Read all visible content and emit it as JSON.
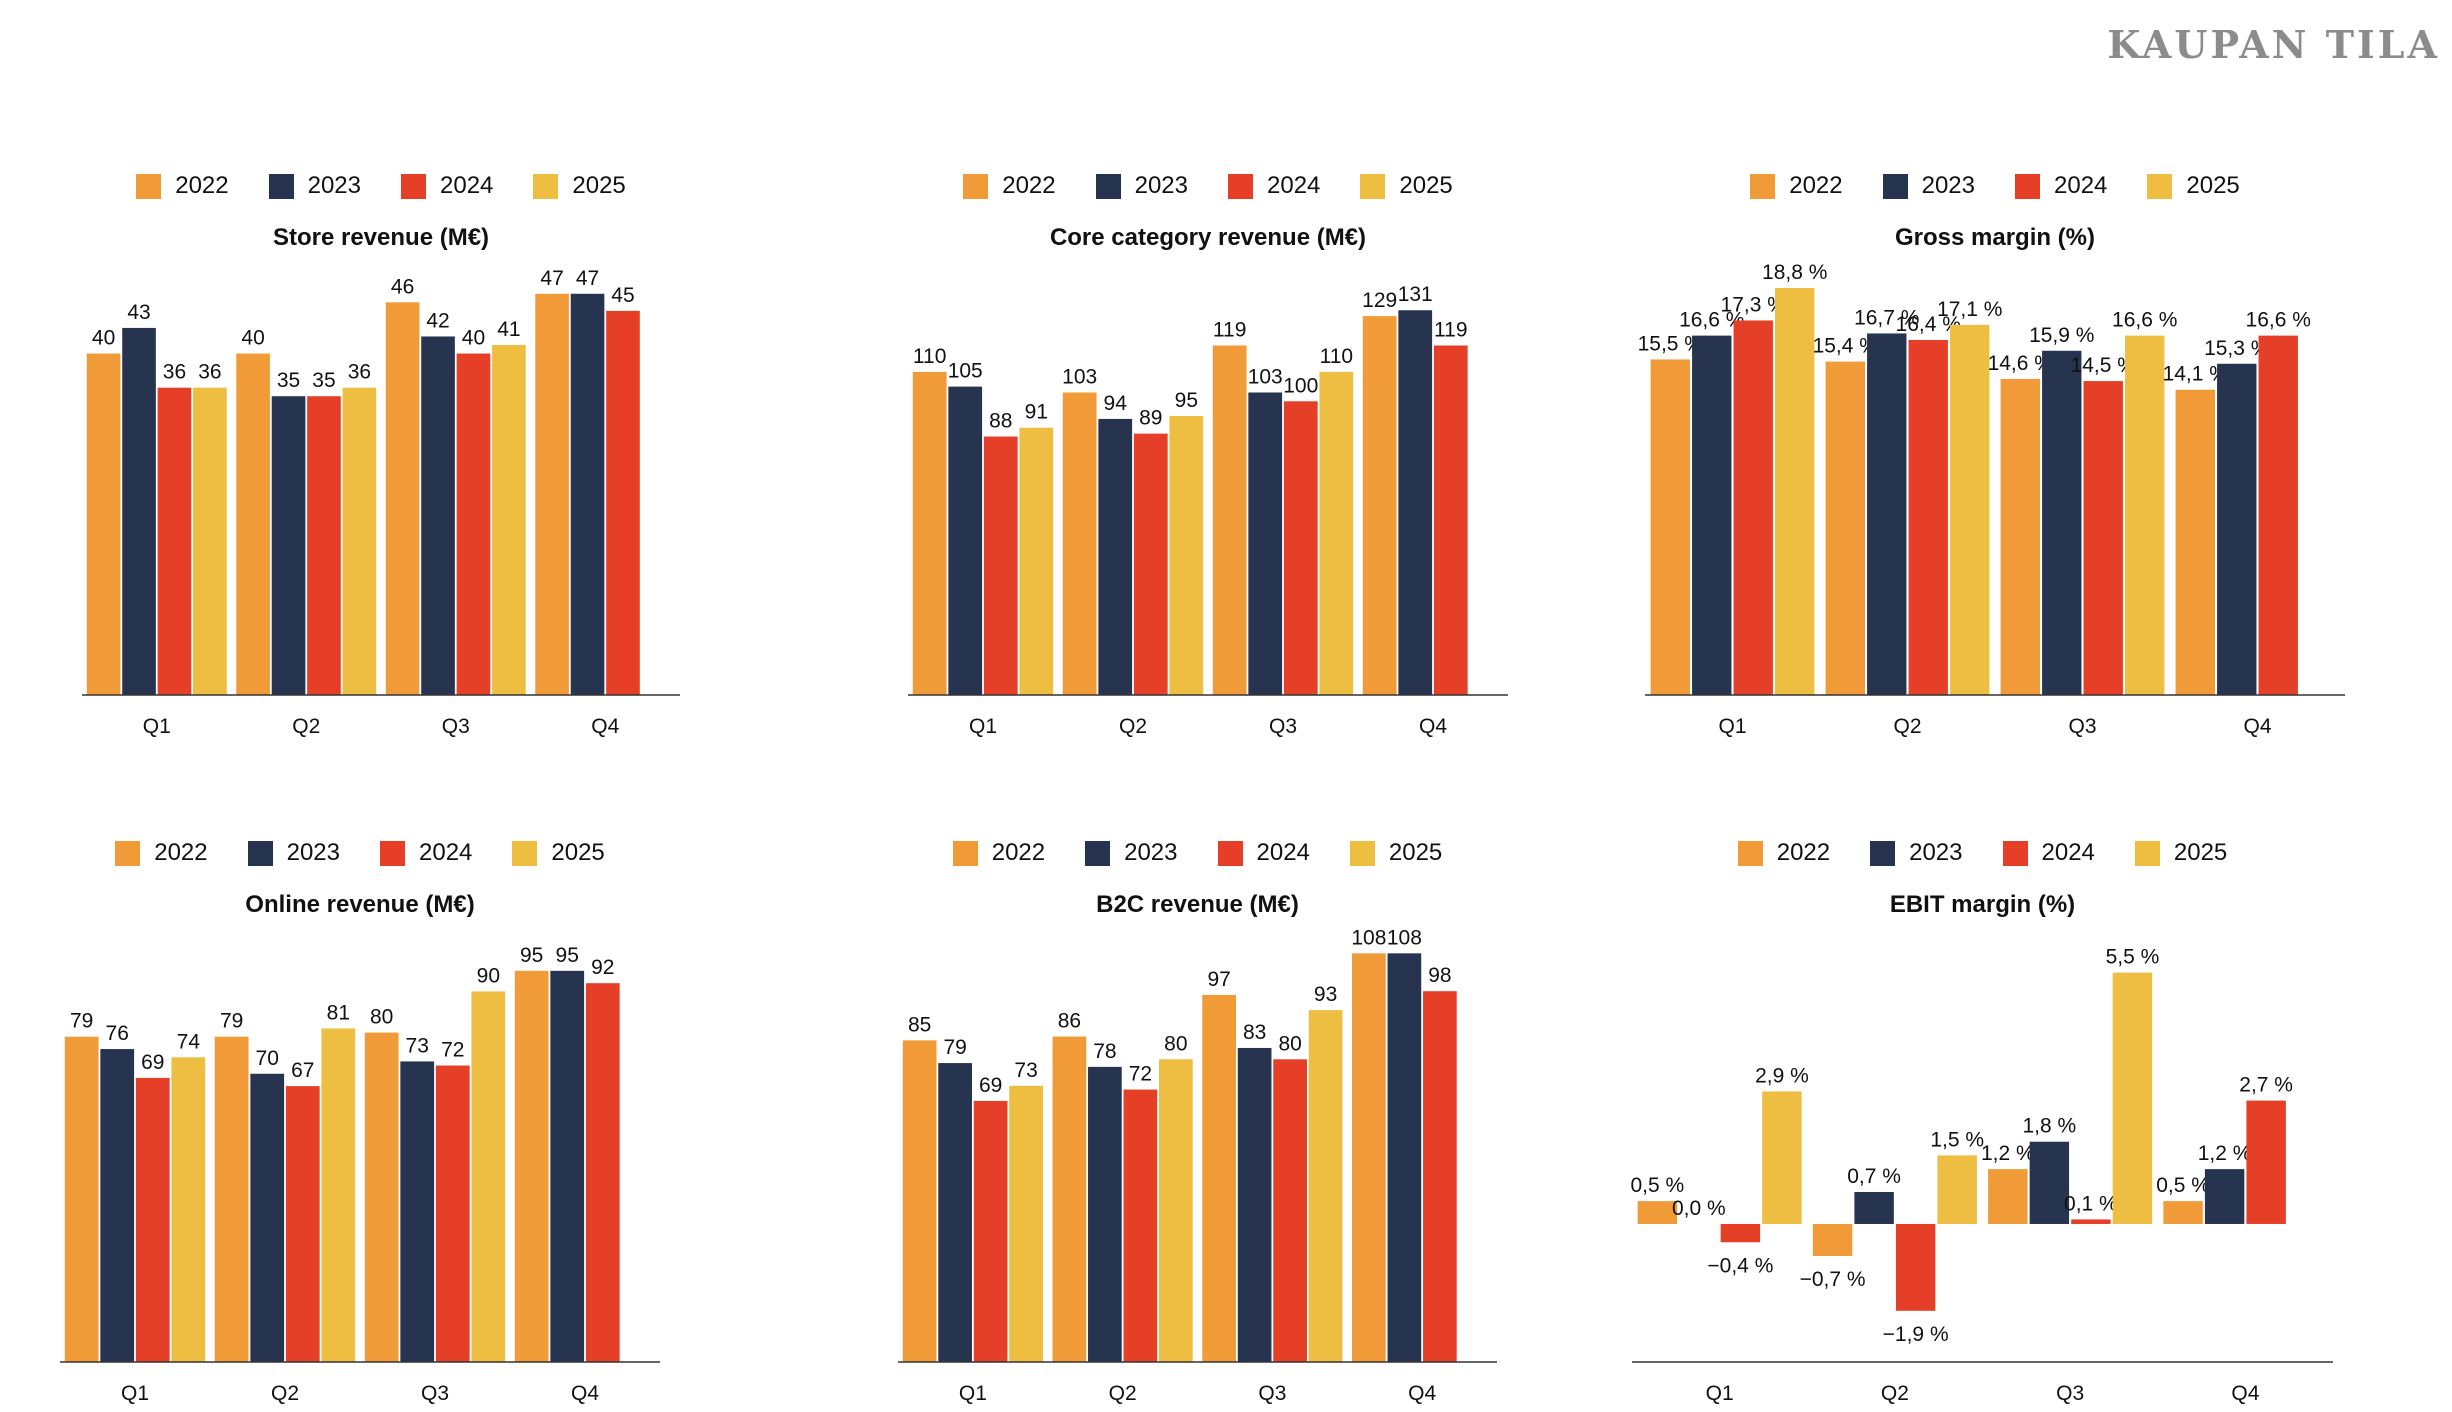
{
  "brand": "KAUPAN TILA",
  "colors": {
    "2022": "#F19A38",
    "2023": "#27344F",
    "2024": "#E54027",
    "2025": "#EDBE42"
  },
  "legend": [
    "2022",
    "2023",
    "2024",
    "2025"
  ],
  "chart_data": [
    {
      "type": "bar",
      "title": "Store revenue (M€)",
      "categories": [
        "Q1",
        "Q2",
        "Q3",
        "Q4"
      ],
      "ylim": [
        0,
        49.2
      ],
      "series": [
        {
          "name": "2022",
          "values": [
            40,
            40,
            46,
            47
          ],
          "labels": [
            "40",
            "40",
            "46",
            "47"
          ]
        },
        {
          "name": "2023",
          "values": [
            43,
            35,
            42,
            47
          ],
          "labels": [
            "43",
            "35",
            "42",
            "47"
          ]
        },
        {
          "name": "2024",
          "values": [
            36,
            35,
            40,
            45
          ],
          "labels": [
            "36",
            "35",
            "40",
            "45"
          ]
        },
        {
          "name": "2025",
          "values": [
            36,
            36,
            41,
            null
          ],
          "labels": [
            "36",
            "36",
            "41",
            null
          ]
        }
      ]
    },
    {
      "type": "bar",
      "title": "Core category revenue (M€)",
      "categories": [
        "Q1",
        "Q2",
        "Q3",
        "Q4"
      ],
      "ylim": [
        0,
        143
      ],
      "series": [
        {
          "name": "2022",
          "values": [
            110,
            103,
            119,
            129
          ],
          "labels": [
            "110",
            "103",
            "119",
            "129"
          ]
        },
        {
          "name": "2023",
          "values": [
            105,
            94,
            103,
            131
          ],
          "labels": [
            "105",
            "94",
            "103",
            "131"
          ]
        },
        {
          "name": "2024",
          "values": [
            88,
            89,
            100,
            119
          ],
          "labels": [
            "88",
            "89",
            "100",
            "119"
          ]
        },
        {
          "name": "2025",
          "values": [
            91,
            95,
            110,
            null
          ],
          "labels": [
            "91",
            "95",
            "110",
            null
          ]
        }
      ]
    },
    {
      "type": "bar",
      "title": "Gross margin (%)",
      "categories": [
        "Q1",
        "Q2",
        "Q3",
        "Q4"
      ],
      "ylim": [
        0,
        19.4
      ],
      "series": [
        {
          "name": "2022",
          "values": [
            15.5,
            15.4,
            14.6,
            14.1
          ],
          "labels": [
            "15,5 %",
            "15,4 %",
            "14,6 %",
            "14,1 %"
          ]
        },
        {
          "name": "2023",
          "values": [
            16.6,
            16.7,
            15.9,
            15.3
          ],
          "labels": [
            "16,6 %",
            "16,7 %",
            "15,9 %",
            "15,3 %"
          ]
        },
        {
          "name": "2024",
          "values": [
            17.3,
            16.4,
            14.5,
            16.6
          ],
          "labels": [
            "17,3 %",
            "16,4 %",
            "14,5 %",
            "16,6 %"
          ]
        },
        {
          "name": "2025",
          "values": [
            18.8,
            17.1,
            16.6,
            null
          ],
          "labels": [
            "18,8 %",
            "17,1 %",
            "16,6 %",
            null
          ]
        }
      ]
    },
    {
      "type": "bar",
      "title": "Online revenue (M€)",
      "categories": [
        "Q1",
        "Q2",
        "Q3",
        "Q4"
      ],
      "ylim": [
        0,
        102
      ],
      "series": [
        {
          "name": "2022",
          "values": [
            79,
            79,
            80,
            95
          ],
          "labels": [
            "79",
            "79",
            "80",
            "95"
          ]
        },
        {
          "name": "2023",
          "values": [
            76,
            70,
            73,
            95
          ],
          "labels": [
            "76",
            "70",
            "73",
            "95"
          ]
        },
        {
          "name": "2024",
          "values": [
            69,
            67,
            72,
            92
          ],
          "labels": [
            "69",
            "67",
            "72",
            "92"
          ]
        },
        {
          "name": "2025",
          "values": [
            74,
            81,
            90,
            null
          ],
          "labels": [
            "74",
            "81",
            "90",
            null
          ]
        }
      ]
    },
    {
      "type": "bar",
      "title": "B2C revenue (M€)",
      "categories": [
        "Q1",
        "Q2",
        "Q3",
        "Q4"
      ],
      "ylim": [
        0,
        111
      ],
      "series": [
        {
          "name": "2022",
          "values": [
            85,
            86,
            97,
            108
          ],
          "labels": [
            "85",
            "86",
            "97",
            "108"
          ]
        },
        {
          "name": "2023",
          "values": [
            79,
            78,
            83,
            108
          ],
          "labels": [
            "79",
            "78",
            "83",
            "108"
          ]
        },
        {
          "name": "2024",
          "values": [
            69,
            72,
            80,
            98
          ],
          "labels": [
            "69",
            "72",
            "80",
            "98"
          ]
        },
        {
          "name": "2025",
          "values": [
            73,
            80,
            93,
            null
          ],
          "labels": [
            "73",
            "80",
            "93",
            null
          ]
        }
      ]
    },
    {
      "type": "bar",
      "title": "EBIT margin (%)",
      "categories": [
        "Q1",
        "Q2",
        "Q3",
        "Q4"
      ],
      "ylim": [
        -3.02,
        6.17
      ],
      "series": [
        {
          "name": "2022",
          "values": [
            0.5,
            -0.7,
            1.2,
            0.5
          ],
          "labels": [
            "0,5 %",
            "−0,7 %",
            "1,2 %",
            "0,5 %"
          ]
        },
        {
          "name": "2023",
          "values": [
            0.0,
            0.7,
            1.8,
            1.2
          ],
          "labels": [
            "0,0 %",
            "0,7 %",
            "1,8 %",
            "1,2 %"
          ]
        },
        {
          "name": "2024",
          "values": [
            -0.4,
            -1.9,
            0.1,
            2.7
          ],
          "labels": [
            "−0,4 %",
            "−1,9 %",
            "0,1 %",
            "2,7 %"
          ]
        },
        {
          "name": "2025",
          "values": [
            2.9,
            1.5,
            5.5,
            null
          ],
          "labels": [
            "2,9 %",
            "1,5 %",
            "5,5 %",
            null
          ]
        }
      ]
    }
  ]
}
